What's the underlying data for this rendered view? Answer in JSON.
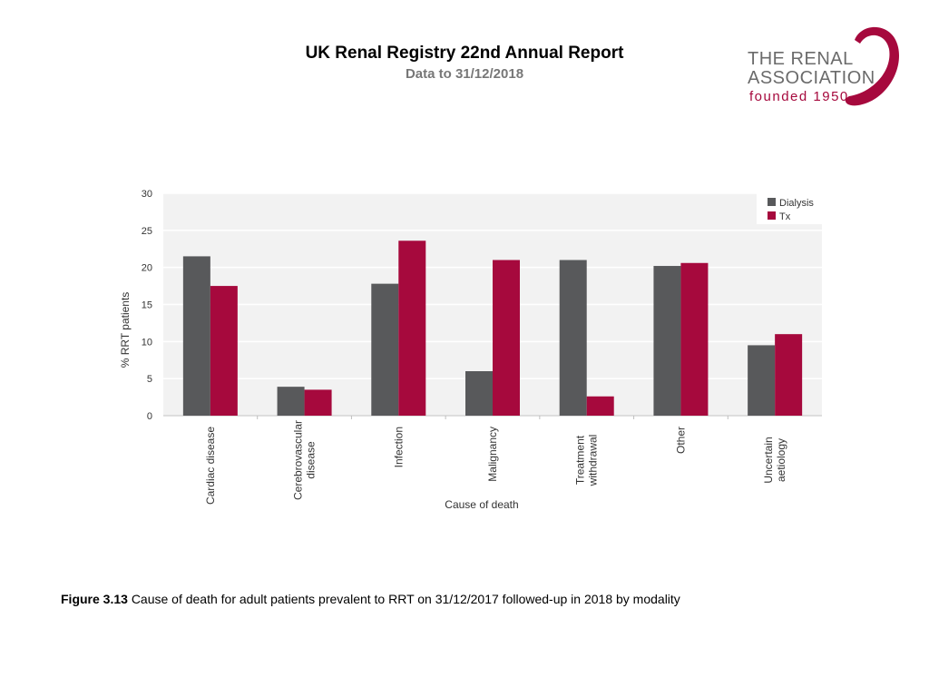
{
  "header": {
    "title": "UK Renal Registry 22nd Annual Report",
    "subtitle": "Data to 31/12/2018"
  },
  "logo": {
    "line1": "THE RENAL",
    "line2": "ASSOCIATION",
    "line3": "founded 1950"
  },
  "caption": {
    "label": "Figure 3.13",
    "text": "Cause of death for adult patients prevalent to RRT on 31/12/2017 followed-up in 2018 by modality"
  },
  "colors": {
    "dialysis": "#58595b",
    "tx": "#a6093d",
    "plot_bg": "#f2f2f2",
    "grid": "#ffffff"
  },
  "chart_data": {
    "type": "bar",
    "title": "",
    "xlabel": "Cause of death",
    "ylabel": "% RRT patients",
    "ylim": [
      0,
      30
    ],
    "yticks": [
      0,
      5,
      10,
      15,
      20,
      25,
      30
    ],
    "categories": [
      [
        "Cardiac disease"
      ],
      [
        "Cerebrovascular",
        "disease"
      ],
      [
        "Infection"
      ],
      [
        "Malignancy"
      ],
      [
        "Treatment",
        "withdrawal"
      ],
      [
        "Other"
      ],
      [
        "Uncertain",
        "aetiology"
      ]
    ],
    "series": [
      {
        "name": "Dialysis",
        "values": [
          21.5,
          3.9,
          17.8,
          6.0,
          21.0,
          20.2,
          9.5
        ]
      },
      {
        "name": "Tx",
        "values": [
          17.5,
          3.5,
          23.6,
          21.0,
          2.6,
          20.6,
          11.0
        ]
      }
    ],
    "legend": "top-right",
    "grid": true
  }
}
